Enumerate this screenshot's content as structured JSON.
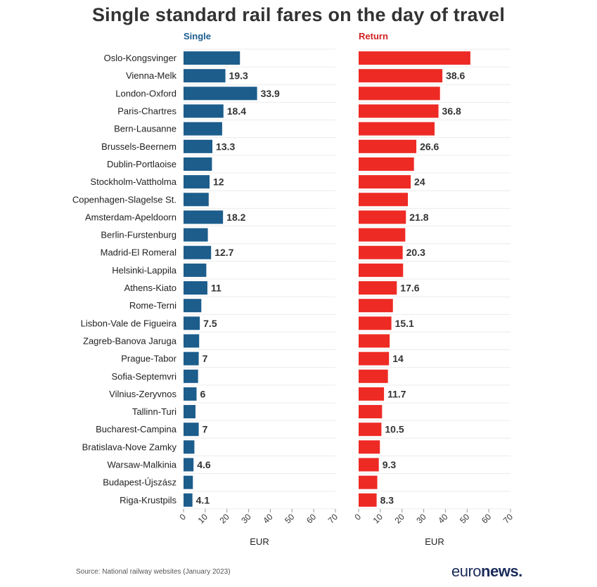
{
  "title": "Single standard rail fares on the day of travel",
  "source": "Source: National railway websites (January 2023)",
  "brand": {
    "part1": "euro",
    "part2": "news",
    "dot": "."
  },
  "colors": {
    "single": "#1c5d8c",
    "return": "#ee2a24",
    "single_label": "#1c5d8c",
    "return_label": "#d22020"
  },
  "chart_data": {
    "type": "bar",
    "orientation": "horizontal",
    "title": "Single standard rail fares on the day of travel",
    "xlabel": "EUR",
    "xlim": [
      0,
      70
    ],
    "xticks": [
      0,
      10,
      20,
      30,
      40,
      50,
      60,
      70
    ],
    "categories": [
      "Oslo-Kongsvinger",
      "Vienna-Melk",
      "London-Oxford",
      "Paris-Chartres",
      "Bern-Lausanne",
      "Brussels-Beernem",
      "Dublin-Portlaoise",
      "Stockholm-Vattholma",
      "Copenhagen-Slagelse St.",
      "Amsterdam-Apeldoorn",
      "Berlin-Furstenburg",
      "Madrid-El Romeral",
      "Helsinki-Lappila",
      "Athens-Kiato",
      "Rome-Terni",
      "Lisbon-Vale de Figueira",
      "Zagreb-Banova Jaruga",
      "Prague-Tabor",
      "Sofia-Septemvri",
      "Vilnius-Zeryvnos",
      "Tallinn-Turi",
      "Bucharest-Campina",
      "Bratislava-Nove Zamky",
      "Warsaw-Malkinia",
      "Budapest-Újszász",
      "Riga-Krustpils"
    ],
    "series": [
      {
        "name": "Single",
        "values": [
          26,
          19.3,
          33.9,
          18.4,
          17.8,
          13.3,
          13.1,
          12,
          11.6,
          18.2,
          11.2,
          12.7,
          10.5,
          11,
          8.2,
          7.5,
          7.2,
          7,
          6.7,
          6,
          5.5,
          7,
          5,
          4.6,
          4.3,
          4.1
        ],
        "labels": [
          "",
          "19.3",
          "33.9",
          "18.4",
          "",
          "13.3",
          "",
          "12",
          "",
          "18.2",
          "",
          "12.7",
          "",
          "11",
          "",
          "7.5",
          "",
          "7",
          "",
          "6",
          "",
          "7",
          "",
          "4.6",
          "",
          "4.1"
        ]
      },
      {
        "name": "Return",
        "values": [
          51.5,
          38.6,
          37.5,
          36.8,
          35,
          26.6,
          25.5,
          24,
          22.7,
          21.8,
          21.5,
          20.3,
          20.5,
          17.6,
          15.8,
          15.1,
          14.3,
          14,
          13.5,
          11.7,
          10.8,
          10.5,
          9.8,
          9.3,
          8.6,
          8.3
        ],
        "labels": [
          "",
          "38.6",
          "",
          "36.8",
          "",
          "26.6",
          "",
          "24",
          "",
          "21.8",
          "",
          "20.3",
          "",
          "17.6",
          "",
          "15.1",
          "",
          "14",
          "",
          "11.7",
          "",
          "10.5",
          "",
          "9.3",
          "",
          "8.3"
        ]
      }
    ]
  }
}
